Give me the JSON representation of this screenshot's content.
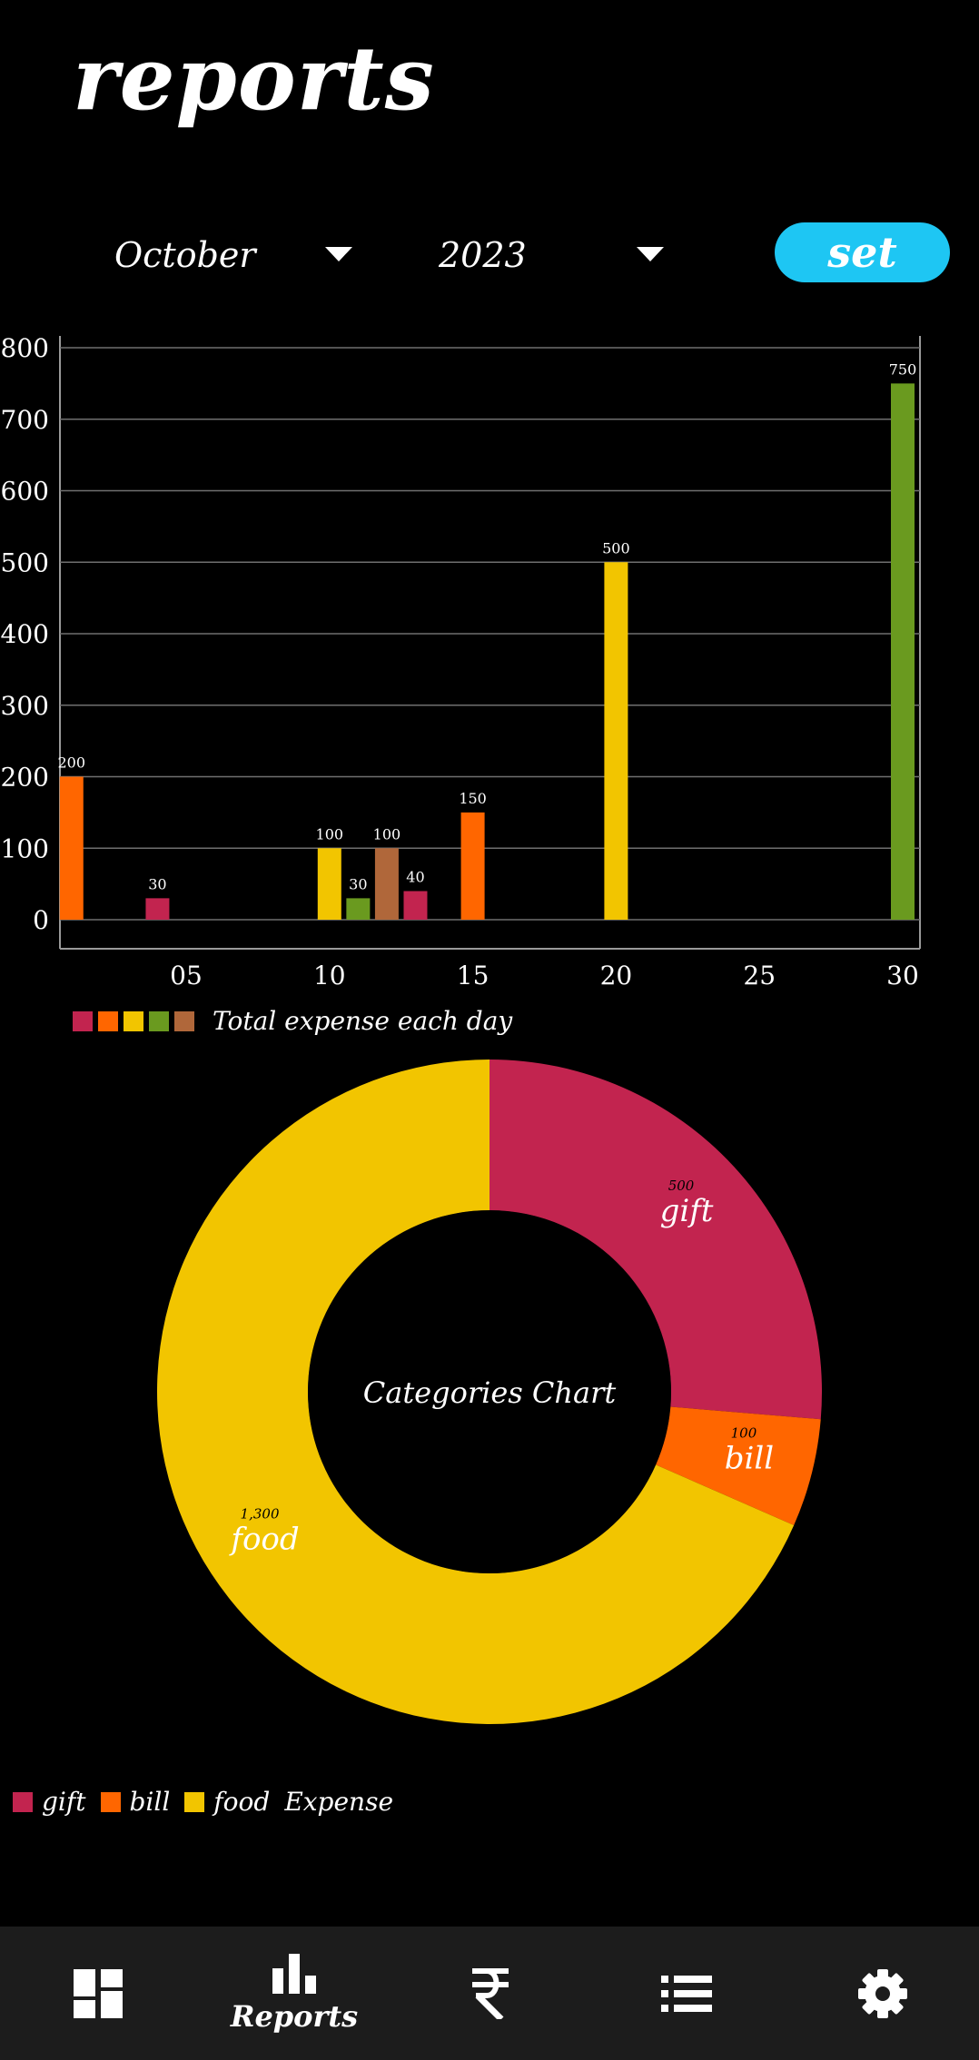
{
  "header": {
    "title": "reports"
  },
  "filters": {
    "month": "October",
    "year": "2023",
    "set_label": "set"
  },
  "colors": {
    "crimson": "#C2244F",
    "orange": "#FF6600",
    "yellow": "#F2C500",
    "green": "#6A9A1F",
    "brown": "#B0673A",
    "accent": "#1EC6F3"
  },
  "chart_data": [
    {
      "type": "bar",
      "legend": "Total expense each day",
      "ylim": [
        0,
        800
      ],
      "yticks": [
        0,
        100,
        200,
        300,
        400,
        500,
        600,
        700,
        800
      ],
      "xticks": [
        "05",
        "10",
        "15",
        "20",
        "25",
        "30"
      ],
      "grid": true,
      "bars": [
        {
          "day": 1,
          "value": 200,
          "label": "200",
          "color": "#FF6600"
        },
        {
          "day": 4,
          "value": 30,
          "label": "30",
          "color": "#C2244F"
        },
        {
          "day": 10,
          "value": 100,
          "label": "100",
          "color": "#F2C500"
        },
        {
          "day": 11,
          "value": 30,
          "label": "30",
          "color": "#6A9A1F"
        },
        {
          "day": 12,
          "value": 100,
          "label": "100",
          "color": "#B0673A"
        },
        {
          "day": 13,
          "value": 40,
          "label": "40",
          "color": "#C2244F"
        },
        {
          "day": 15,
          "value": 150,
          "label": "150",
          "color": "#FF6600"
        },
        {
          "day": 20,
          "value": 500,
          "label": "500",
          "color": "#F2C500"
        },
        {
          "day": 30,
          "value": 750,
          "label": "750",
          "color": "#6A9A1F"
        }
      ]
    },
    {
      "type": "pie",
      "center_text": "Categories Chart",
      "legend_title": "Expense",
      "slices": [
        {
          "name": "gift",
          "value": 500,
          "value_label": "500",
          "color": "#C2244F"
        },
        {
          "name": "bill",
          "value": 100,
          "value_label": "100",
          "color": "#FF6600"
        },
        {
          "name": "food",
          "value": 1300,
          "value_label": "1,300",
          "color": "#F2C500"
        }
      ]
    }
  ],
  "nav": {
    "items": [
      {
        "name": "dashboard",
        "icon": "dashboard-icon",
        "label": ""
      },
      {
        "name": "reports",
        "icon": "bar-chart-icon",
        "label": "Reports"
      },
      {
        "name": "expense",
        "icon": "rupee-icon",
        "label": ""
      },
      {
        "name": "list",
        "icon": "list-icon",
        "label": ""
      },
      {
        "name": "settings",
        "icon": "gear-icon",
        "label": ""
      }
    ]
  }
}
